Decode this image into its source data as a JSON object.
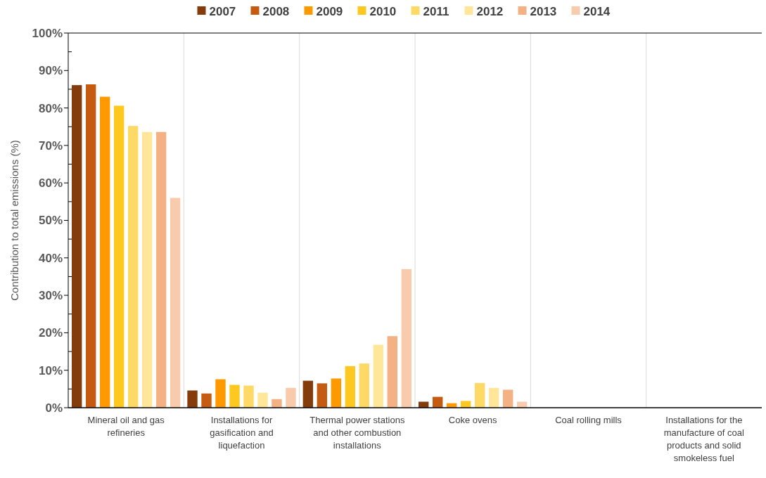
{
  "chart_data": {
    "type": "bar",
    "ylabel": "Contribution to total emissions (%)",
    "categories": [
      "Mineral oil and gas refineries",
      "Installations for gasification and liquefaction",
      "Thermal power stations and other combustion installations",
      "Coke ovens",
      "Coal rolling mills",
      "Installations for the manufacture of coal products and solid smokeless fuel"
    ],
    "series": [
      {
        "name": "2007",
        "color": "#843c0c",
        "values": [
          86.1,
          4.6,
          7.2,
          1.6,
          0,
          0
        ]
      },
      {
        "name": "2008",
        "color": "#c55a11",
        "values": [
          86.3,
          3.8,
          6.5,
          2.9,
          0,
          0
        ]
      },
      {
        "name": "2009",
        "color": "#ff9900",
        "values": [
          83.0,
          7.6,
          7.8,
          1.2,
          0,
          0
        ]
      },
      {
        "name": "2010",
        "color": "#ffc820",
        "values": [
          80.6,
          6.1,
          11.1,
          1.8,
          0,
          0
        ]
      },
      {
        "name": "2011",
        "color": "#ffd966",
        "values": [
          75.2,
          5.9,
          11.8,
          6.6,
          0,
          0
        ]
      },
      {
        "name": "2012",
        "color": "#ffe699",
        "values": [
          73.6,
          4.0,
          16.8,
          5.3,
          0,
          0
        ]
      },
      {
        "name": "2013",
        "color": "#f4b183",
        "values": [
          73.6,
          2.3,
          19.1,
          4.8,
          0,
          0
        ]
      },
      {
        "name": "2014",
        "color": "#f8cbad",
        "values": [
          56.0,
          5.3,
          37.0,
          1.6,
          0,
          0
        ]
      }
    ],
    "ylim": [
      0,
      100
    ],
    "yticks": [
      {
        "value": 0,
        "label": "0%"
      },
      {
        "value": 5,
        "label": null
      },
      {
        "value": 10,
        "label": "10%"
      },
      {
        "value": 15,
        "label": null
      },
      {
        "value": 20,
        "label": "20%"
      },
      {
        "value": 25,
        "label": null
      },
      {
        "value": 30,
        "label": "30%"
      },
      {
        "value": 35,
        "label": null
      },
      {
        "value": 40,
        "label": "40%"
      },
      {
        "value": 45,
        "label": null
      },
      {
        "value": 50,
        "label": "50%"
      },
      {
        "value": 55,
        "label": null
      },
      {
        "value": 60,
        "label": "60%"
      },
      {
        "value": 65,
        "label": null
      },
      {
        "value": 70,
        "label": "70%"
      },
      {
        "value": 75,
        "label": null
      },
      {
        "value": 80,
        "label": "80%"
      },
      {
        "value": 85,
        "label": null
      },
      {
        "value": 90,
        "label": "90%"
      },
      {
        "value": 95,
        "label": null
      },
      {
        "value": 100,
        "label": "100%"
      }
    ],
    "grid": "x",
    "legend": "top"
  }
}
